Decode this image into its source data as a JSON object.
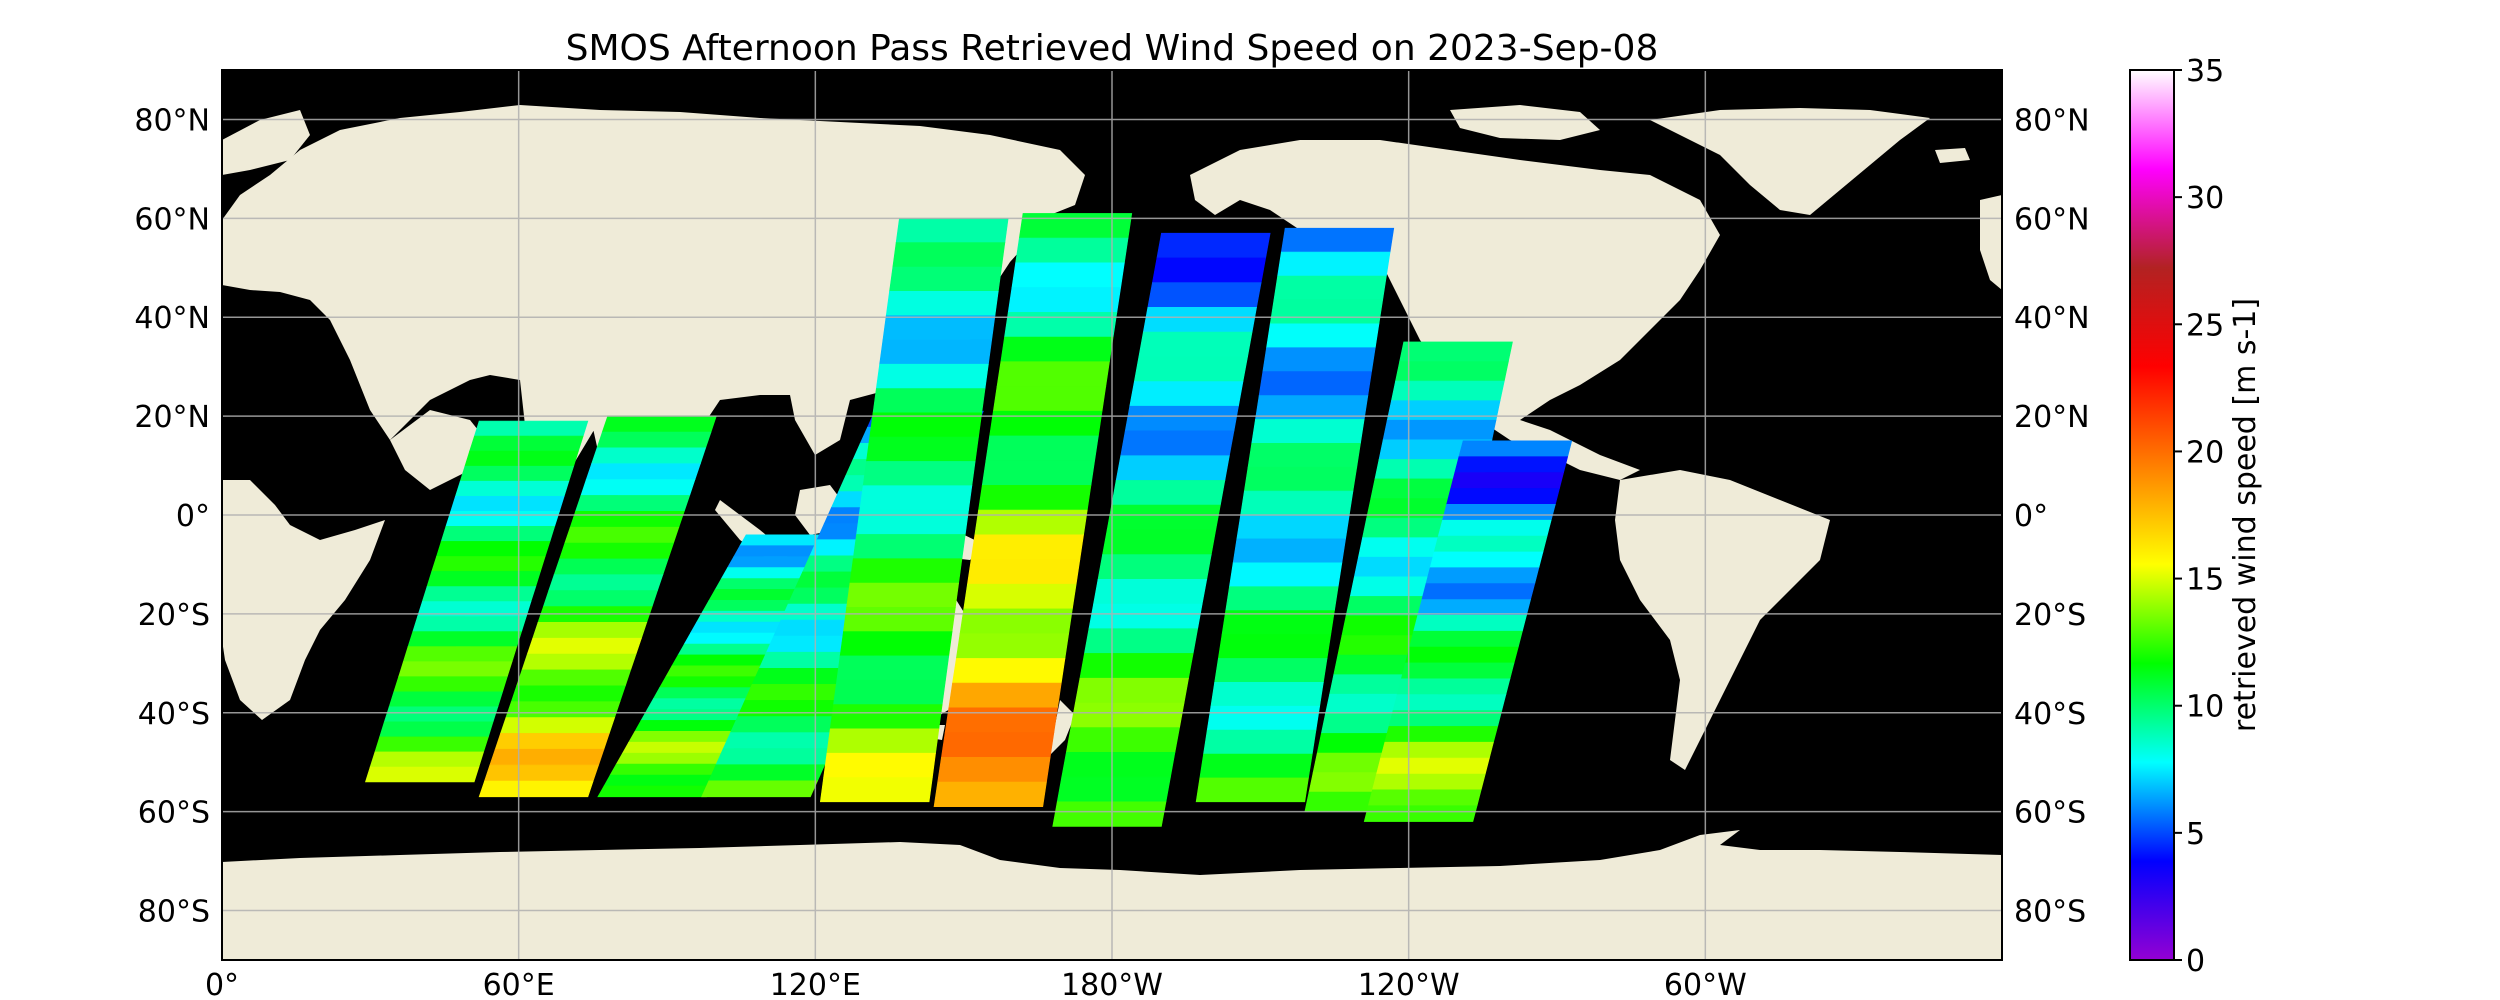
{
  "title": "SMOS Afternoon Pass Retrieved Wind Speed on 2023-Sep-08",
  "map": {
    "projection": "equirectangular",
    "central_longitude": 180,
    "lon_range": [
      0,
      360
    ],
    "lat_range": [
      -90,
      90
    ],
    "ocean_color": "#000000",
    "land_color": "#efebd8",
    "gridlines": true,
    "lat_labels": [
      "80°N",
      "60°N",
      "40°N",
      "20°N",
      "0°",
      "20°S",
      "40°S",
      "60°S",
      "80°S"
    ],
    "lon_labels": [
      "0°",
      "60°E",
      "120°E",
      "180°W",
      "120°W",
      "60°W"
    ]
  },
  "colorbar": {
    "label": "retrieved wind speed [m s-1]",
    "ticks": [
      "35",
      "30",
      "25",
      "20",
      "15",
      "10",
      "5",
      "0"
    ],
    "range": [
      0,
      35
    ],
    "stops": [
      "#9400d3",
      "#0000ff",
      "#00ffff",
      "#00ff00",
      "#ffff00",
      "#ff7f00",
      "#ff0000",
      "#b22222",
      "#ff00ff",
      "#ffffff"
    ]
  },
  "chart_data": {
    "type": "heatmap",
    "title": "SMOS Afternoon Pass Retrieved Wind Speed on 2023-Sep-08",
    "xlabel": "",
    "ylabel": "",
    "xlim": [
      0,
      360
    ],
    "ylim": [
      -90,
      90
    ],
    "value_label": "retrieved wind speed [m s-1]",
    "value_range": [
      0,
      35
    ],
    "swaths": [
      {
        "lon_north": 63,
        "lat_north": 19,
        "lon_south": 40,
        "lat_south": -54,
        "north_speed": 9,
        "south_speed": 13
      },
      {
        "lon_north": 89,
        "lat_north": 20,
        "lon_south": 63,
        "lat_south": -57,
        "north_speed": 9,
        "south_speed": 17
      },
      {
        "lon_north": 117,
        "lat_north": -4,
        "lon_south": 87,
        "lat_south": -57,
        "north_speed": 8,
        "south_speed": 14
      },
      {
        "lon_north": 143,
        "lat_north": 21,
        "lon_south": 108,
        "lat_south": -57,
        "north_speed": 7,
        "south_speed": 12
      },
      {
        "lon_north": 148,
        "lat_north": 60,
        "lon_south": 132,
        "lat_south": -58,
        "north_speed": 8,
        "south_speed": 14
      },
      {
        "lon_north": 173,
        "lat_north": 61,
        "lon_south": 155,
        "lat_south": -59,
        "north_speed": 9,
        "south_speed": 20
      },
      {
        "lon_north": 201,
        "lat_north": 57,
        "lon_south": 179,
        "lat_south": -63,
        "north_speed": 6,
        "south_speed": 14
      },
      {
        "lon_north": 226,
        "lat_north": 58,
        "lon_south": 208,
        "lat_south": -58,
        "north_speed": 7,
        "south_speed": 11
      },
      {
        "lon_north": 250,
        "lat_north": 35,
        "lon_south": 230,
        "lat_south": -60,
        "north_speed": 8,
        "south_speed": 12
      },
      {
        "lon_north": 262,
        "lat_north": 15,
        "lon_south": 242,
        "lat_south": -62,
        "north_speed": 5,
        "south_speed": 15
      }
    ]
  }
}
